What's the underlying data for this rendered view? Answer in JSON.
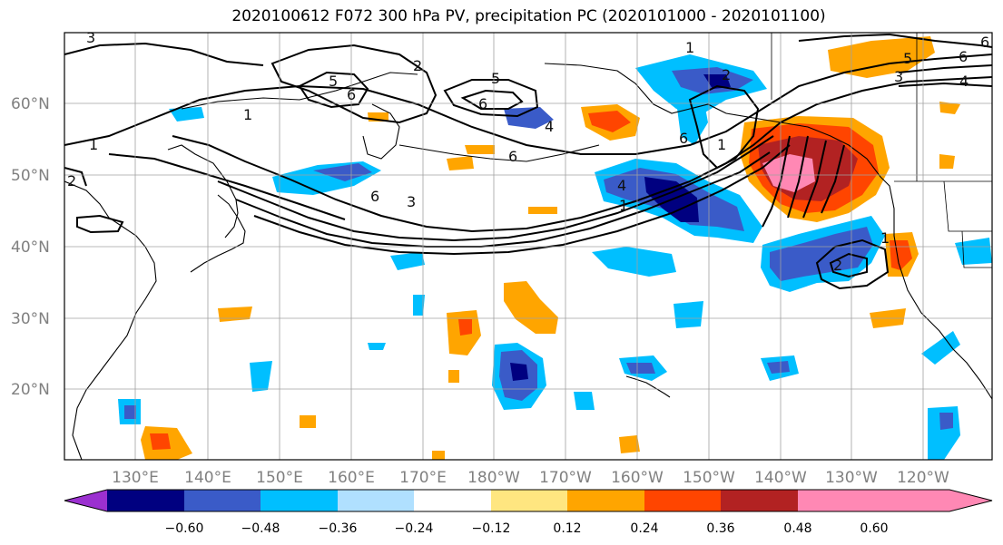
{
  "title": "2020100612 F072 300 hPa PV, precipitation PC (2020101000 - 2020101100)",
  "latitude_labels": [
    "60°N",
    "50°N",
    "40°N",
    "30°N",
    "20°N"
  ],
  "longitude_labels": [
    "130°E",
    "140°E",
    "150°E",
    "160°E",
    "170°E",
    "180°W",
    "170°W",
    "160°W",
    "150°W",
    "140°W",
    "130°W",
    "120°W"
  ],
  "colorbar": {
    "colors": [
      "#9b30d0",
      "#000080",
      "#3a5bc8",
      "#00bfff",
      "#b0e0ff",
      "#ffffff",
      "#ffe680",
      "#ffa500",
      "#ff4500",
      "#b22222",
      "#ff88b4"
    ],
    "tick_labels": [
      "−0.60",
      "−0.48",
      "−0.36",
      "−0.24",
      "−0.12",
      "0.12",
      "0.24",
      "0.36",
      "0.48",
      "0.60"
    ]
  },
  "contour_labels": [
    "3",
    "2",
    "1",
    "1",
    "5",
    "6",
    "5",
    "6",
    "4",
    "2",
    "1",
    "6",
    "4",
    "3",
    "6",
    "5",
    "1",
    "6",
    "6",
    "6",
    "4",
    "3",
    "2",
    "1",
    "2",
    "1"
  ]
}
